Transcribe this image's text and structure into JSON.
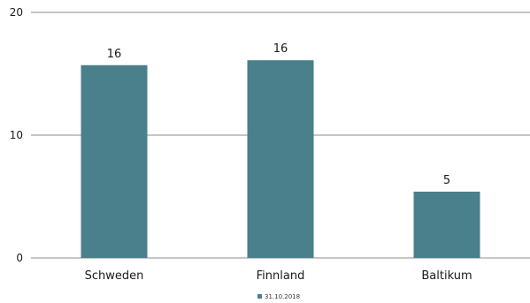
{
  "chart_data": {
    "type": "bar",
    "title": "",
    "xlabel": "",
    "ylabel": "",
    "categories": [
      "Schweden",
      "Finnland",
      "Baltikum"
    ],
    "series": [
      {
        "name": "31.10.2018",
        "values": [
          15.7,
          16.1,
          5.4
        ],
        "data_labels": [
          "16",
          "16",
          "5"
        ],
        "color": "#4a7f8c"
      }
    ],
    "ylim": [
      0,
      20
    ],
    "yticks": [
      "0",
      "10",
      "20"
    ],
    "grid": true,
    "legend": "bottom-center"
  }
}
